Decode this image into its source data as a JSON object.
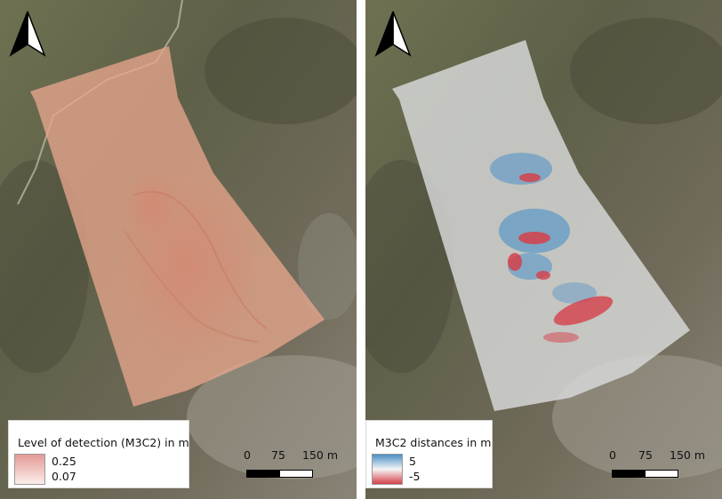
{
  "panels": {
    "left": {
      "legend": {
        "title": "Level of detection (M3C2) in m",
        "high": "0.25",
        "low": "0.07"
      },
      "scalebar": {
        "tick0": "0",
        "tick1": "75",
        "tick2": "150 m"
      },
      "colors": {
        "ramp_high": "#e59a96",
        "ramp_low": "#fbeeea",
        "overlay": "#e6a58c"
      }
    },
    "right": {
      "legend": {
        "title": "M3C2 distances in m",
        "high": "5",
        "low": "-5"
      },
      "scalebar": {
        "tick0": "0",
        "tick1": "75",
        "tick2": "150 m"
      },
      "colors": {
        "ramp_high": "#4a8fc6",
        "ramp_mid": "#f5f5f5",
        "ramp_low": "#d5404a",
        "overlay": "#d9dadb"
      }
    }
  },
  "icons": {
    "north_arrow": "north-arrow-icon"
  }
}
